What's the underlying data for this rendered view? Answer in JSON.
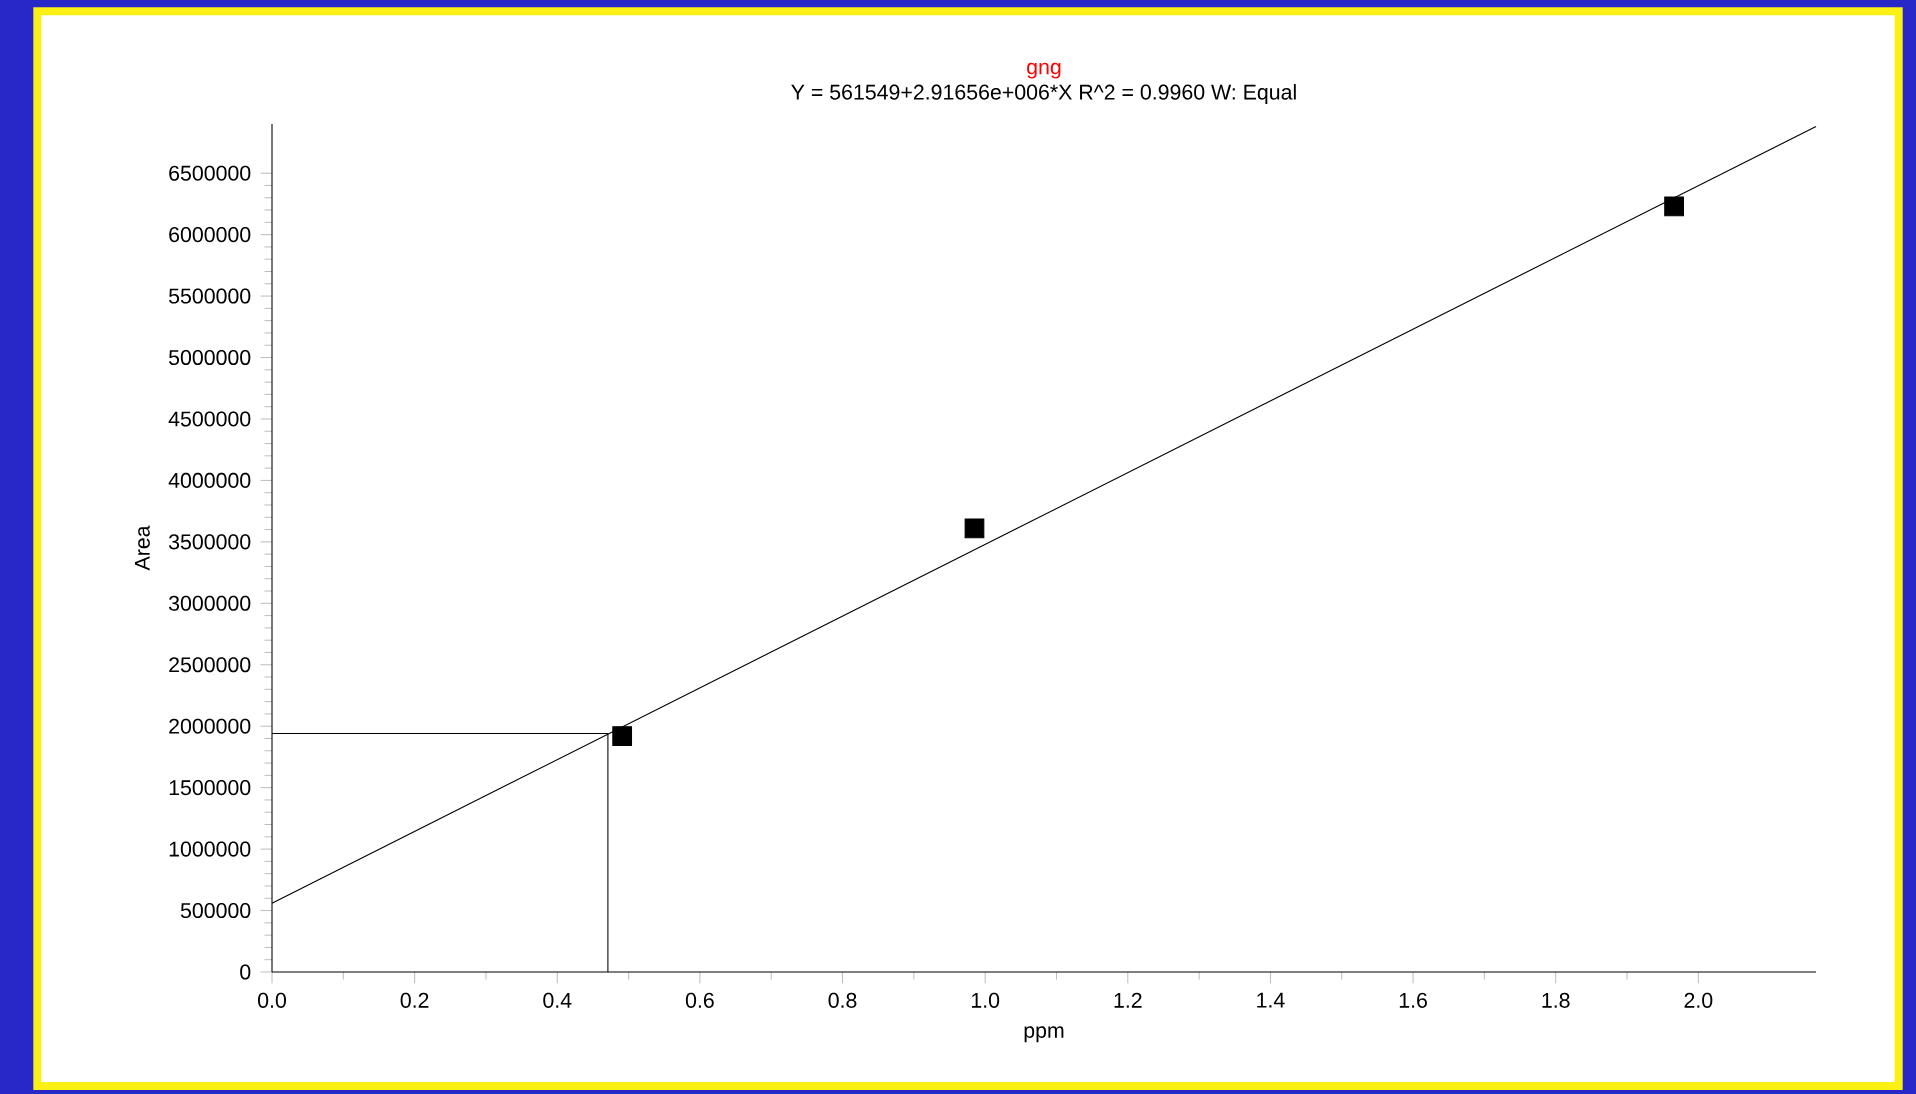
{
  "chart_data": {
    "type": "scatter",
    "title": "gng",
    "subtitle": "Y = 561549+2.91656e+006*X   R^2 = 0.9960   W: Equal",
    "xlabel": "ppm",
    "ylabel": "Area",
    "series": [
      {
        "color": "#000000",
        "marker": "square",
        "x": [
          0.491,
          0.985,
          1.966
        ],
        "values": [
          1920000,
          3610000,
          6230000
        ]
      },
      {
        "type": "line",
        "color": "#000000",
        "marker": "none",
        "x": [
          0,
          2.165
        ],
        "values": [
          560000,
          6880000
        ]
      },
      {
        "type": "line",
        "color": "#000000",
        "marker": "none",
        "x": [
          0,
          0.471,
          0.471
        ],
        "values": [
          1940000,
          1940000,
          0
        ]
      }
    ],
    "xlim": [
      0,
      2.165
    ],
    "ylim": [
      0,
      6900000
    ],
    "xticks": [
      {
        "value": 0,
        "label": "0.0"
      },
      0.2,
      0.4,
      0.6,
      0.8,
      {
        "value": 1,
        "label": "1.0"
      },
      1.2,
      1.4,
      1.6,
      1.8,
      {
        "value": 2,
        "label": "2.0"
      }
    ],
    "yticks": [
      0,
      500000,
      1000000,
      1500000,
      2000000,
      2500000,
      3000000,
      3500000,
      4000000,
      4500000,
      5000000,
      5500000,
      6000000,
      6500000
    ],
    "grid": false
  }
}
